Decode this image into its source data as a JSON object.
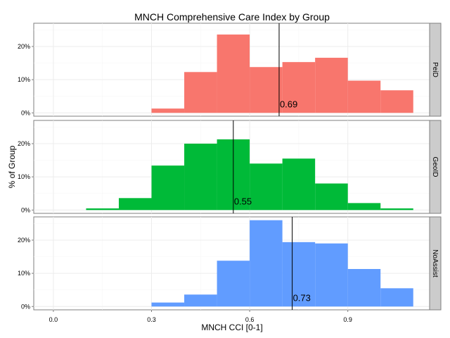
{
  "chart_data": {
    "type": "bar",
    "title": "MNCH Comprehensive Care Index by Group",
    "xlabel": "MNCH CCI [0-1]",
    "ylabel": "% of Group",
    "xlim": [
      -0.06,
      1.15
    ],
    "ylim": [
      -0.01,
      0.27
    ],
    "x_ticks": [
      0.0,
      0.3,
      0.6,
      0.9
    ],
    "x_tick_labels": [
      "0.0",
      "0.3",
      "0.6",
      "0.9"
    ],
    "y_ticks": [
      0.0,
      0.1,
      0.2
    ],
    "y_tick_labels": [
      "0%",
      "10%",
      "20%"
    ],
    "grid": true,
    "legend": "none",
    "bin_edges": [
      0.1,
      0.2,
      0.3,
      0.4,
      0.5,
      0.6,
      0.7,
      0.8,
      0.9,
      1.0,
      1.1
    ],
    "series": [
      {
        "name": "PeiD",
        "color": "#F8766D",
        "values": [
          0.0,
          0.0,
          0.013,
          0.123,
          0.236,
          0.138,
          0.153,
          0.166,
          0.097,
          0.068
        ],
        "mean": 0.69,
        "mean_label": "0.69"
      },
      {
        "name": "GeoID",
        "color": "#00BA38",
        "values": [
          0.005,
          0.036,
          0.134,
          0.2,
          0.213,
          0.14,
          0.155,
          0.08,
          0.021,
          0.005
        ],
        "mean": 0.55,
        "mean_label": "0.55"
      },
      {
        "name": "NoAssist",
        "color": "#619CFF",
        "values": [
          0.0,
          0.0,
          0.012,
          0.036,
          0.138,
          0.26,
          0.194,
          0.19,
          0.113,
          0.055
        ],
        "mean": 0.73,
        "mean_label": "0.73"
      }
    ]
  }
}
